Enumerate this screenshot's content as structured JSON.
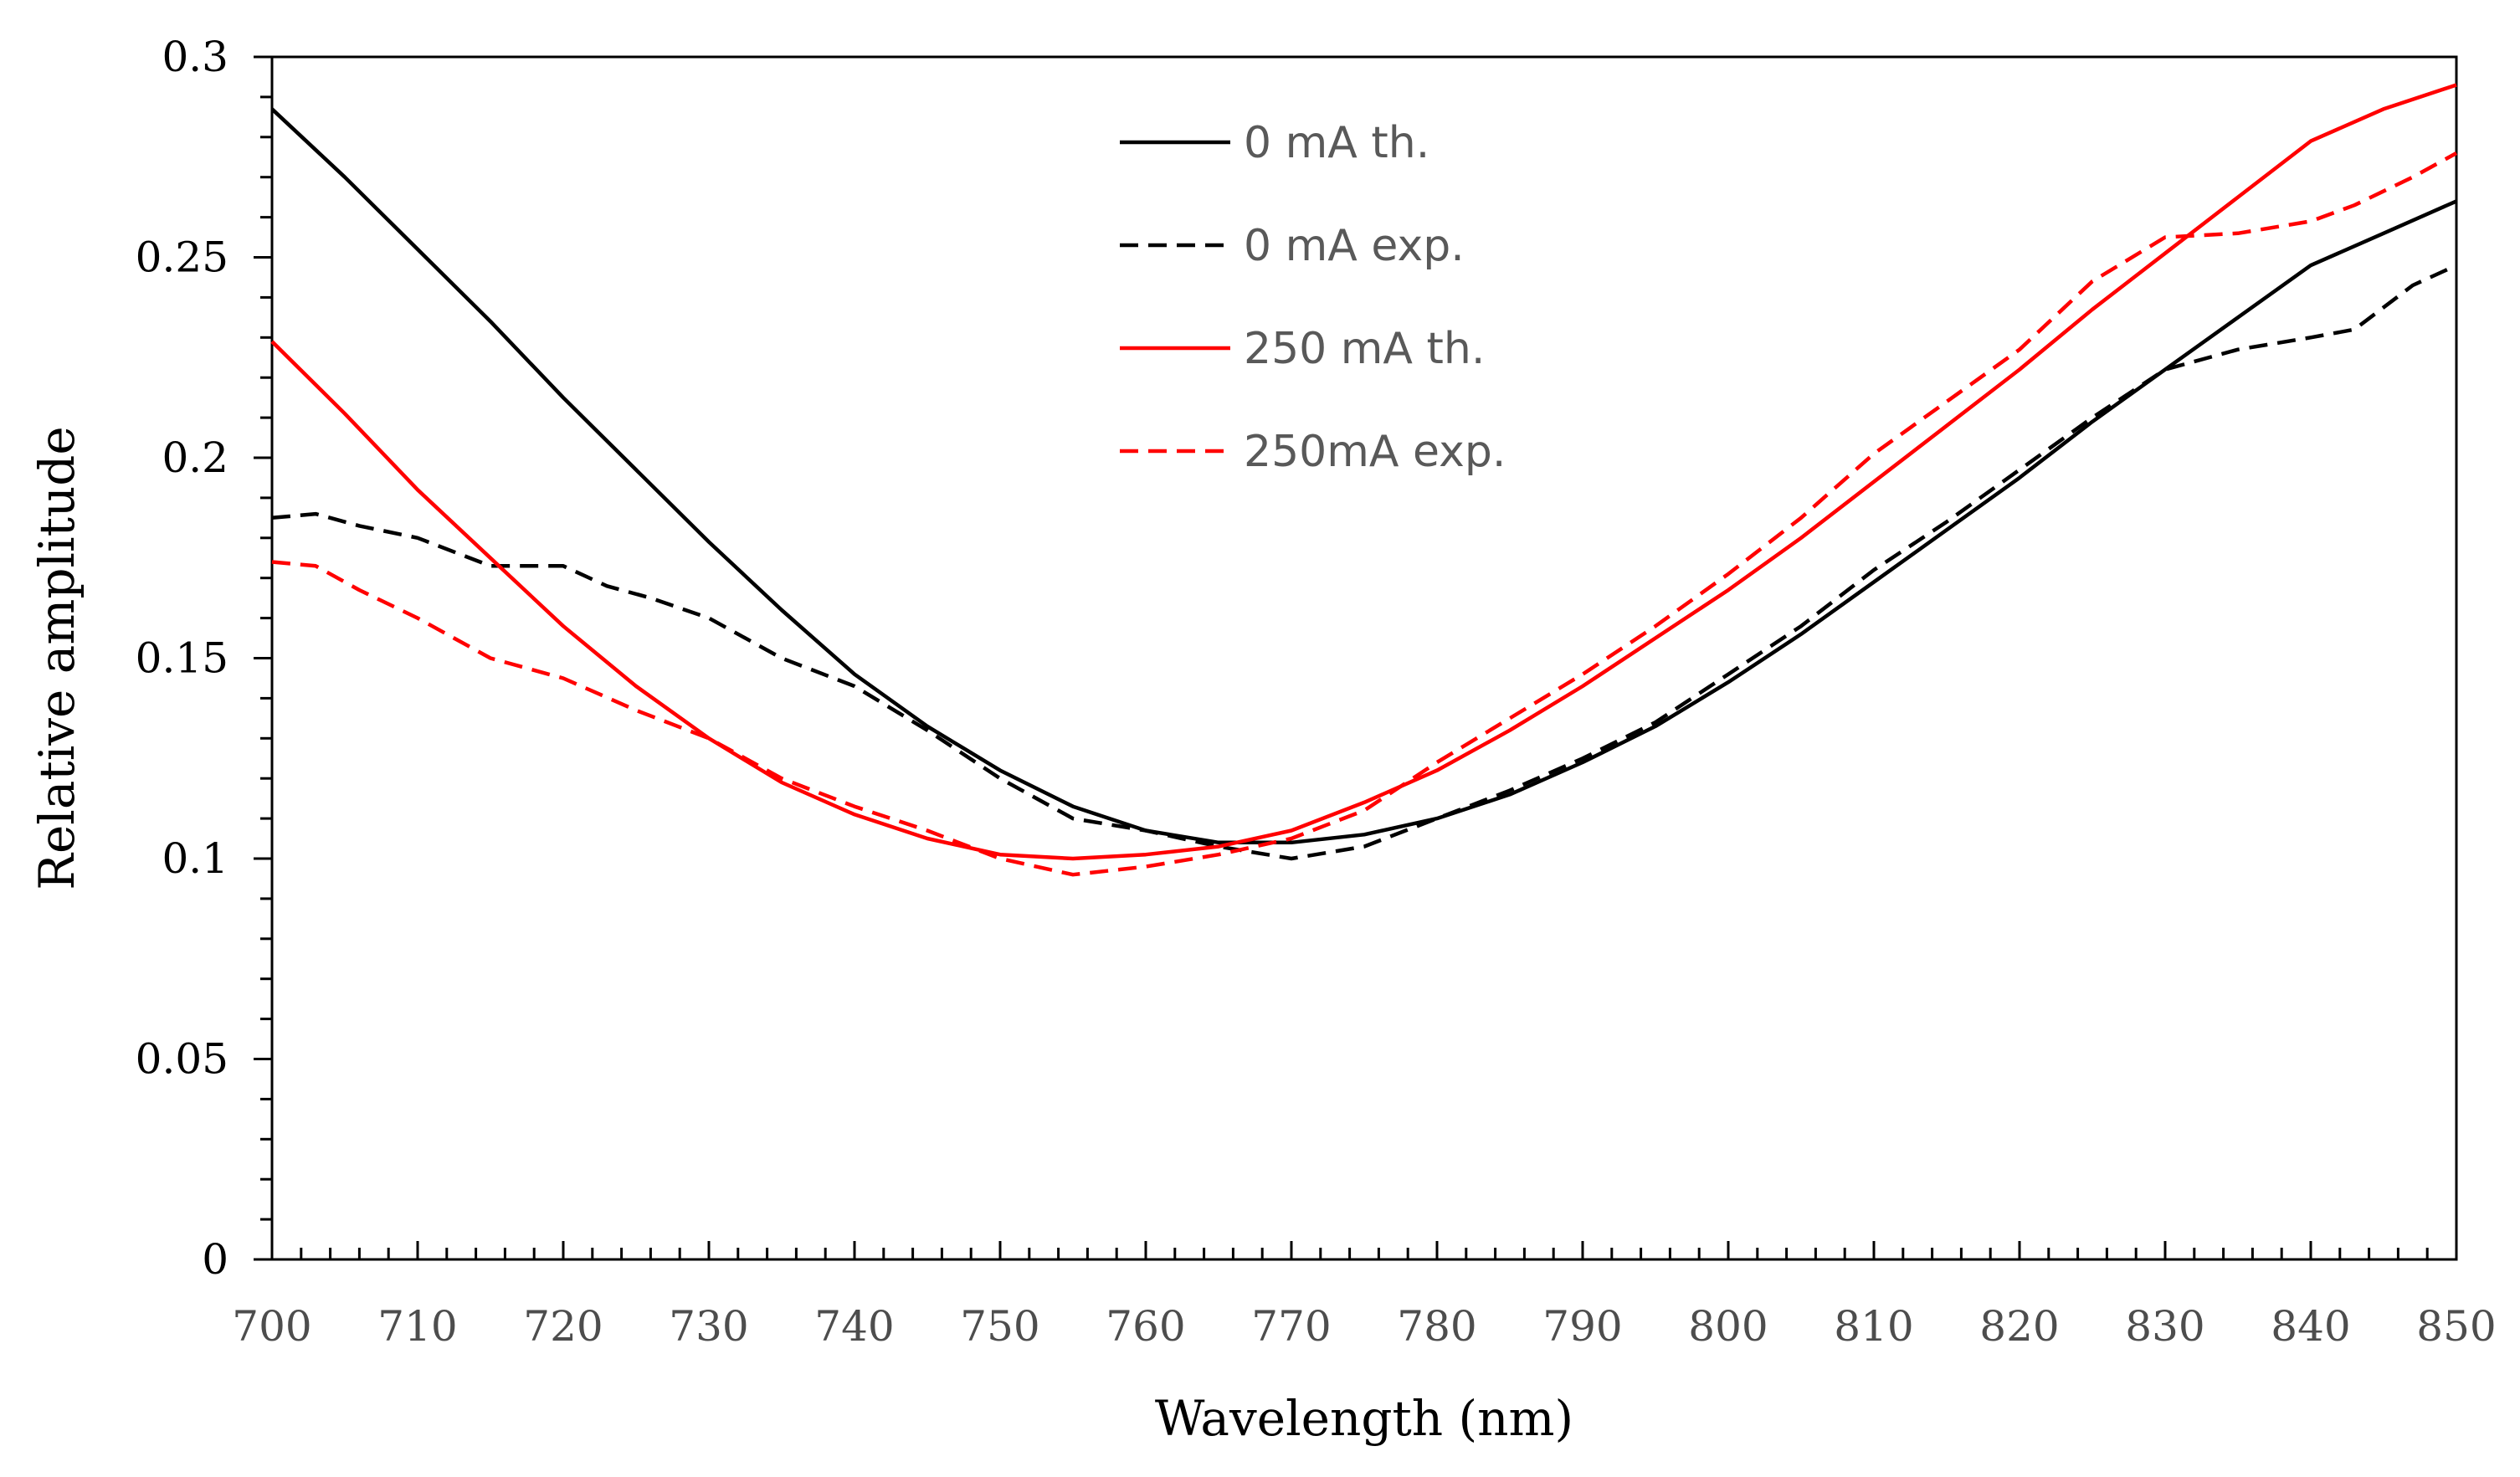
{
  "chart_data": {
    "type": "line",
    "xlabel": "Wavelength (nm)",
    "ylabel": "Relative amplitude",
    "xlim": [
      700,
      850
    ],
    "ylim": [
      0,
      0.3
    ],
    "x_ticks": [
      700,
      710,
      720,
      730,
      740,
      750,
      760,
      770,
      780,
      790,
      800,
      810,
      820,
      830,
      840,
      850
    ],
    "x_tick_labels": [
      "700",
      "710",
      "720",
      "730",
      "740",
      "750",
      "760",
      "770",
      "780",
      "790",
      "800",
      "810",
      "820",
      "830",
      "840",
      "850"
    ],
    "y_ticks": [
      0,
      0.05,
      0.1,
      0.15,
      0.2,
      0.25,
      0.3
    ],
    "y_tick_labels": [
      "0",
      "0.05",
      "0.1",
      "0.15",
      "0.2",
      "0.25",
      "0.3"
    ],
    "grid": false,
    "legend_position": "top-center",
    "series": [
      {
        "name": "0 mA th.",
        "color": "#000000",
        "dash": "solid",
        "x": [
          700,
          705,
          710,
          715,
          720,
          725,
          730,
          735,
          740,
          745,
          750,
          755,
          760,
          765,
          770,
          775,
          780,
          785,
          790,
          795,
          800,
          805,
          810,
          815,
          820,
          825,
          830,
          835,
          840,
          845,
          850
        ],
        "y": [
          0.287,
          0.27,
          0.252,
          0.234,
          0.215,
          0.197,
          0.179,
          0.162,
          0.146,
          0.133,
          0.122,
          0.113,
          0.107,
          0.104,
          0.104,
          0.106,
          0.11,
          0.116,
          0.124,
          0.133,
          0.144,
          0.156,
          0.169,
          0.182,
          0.195,
          0.209,
          0.222,
          0.235,
          0.248,
          0.256,
          0.264
        ]
      },
      {
        "name": "0 mA exp.",
        "color": "#000000",
        "dash": "dashed",
        "x": [
          700,
          703,
          706,
          710,
          715,
          720,
          723,
          726,
          730,
          735,
          740,
          745,
          750,
          755,
          760,
          765,
          770,
          775,
          780,
          785,
          790,
          795,
          800,
          805,
          810,
          815,
          820,
          825,
          830,
          835,
          840,
          843,
          847,
          850
        ],
        "y": [
          0.185,
          0.186,
          0.183,
          0.18,
          0.173,
          0.173,
          0.168,
          0.165,
          0.16,
          0.15,
          0.143,
          0.132,
          0.12,
          0.11,
          0.107,
          0.103,
          0.1,
          0.103,
          0.11,
          0.117,
          0.125,
          0.134,
          0.146,
          0.158,
          0.172,
          0.184,
          0.197,
          0.21,
          0.222,
          0.227,
          0.23,
          0.232,
          0.243,
          0.248
        ]
      },
      {
        "name": "250 mA th.",
        "color": "#ff0000",
        "dash": "solid",
        "x": [
          700,
          705,
          710,
          715,
          720,
          725,
          730,
          735,
          740,
          745,
          750,
          755,
          760,
          765,
          770,
          775,
          780,
          785,
          790,
          795,
          800,
          805,
          810,
          815,
          820,
          825,
          830,
          835,
          840,
          845,
          850
        ],
        "y": [
          0.229,
          0.211,
          0.192,
          0.175,
          0.158,
          0.143,
          0.13,
          0.119,
          0.111,
          0.105,
          0.101,
          0.1,
          0.101,
          0.103,
          0.107,
          0.114,
          0.122,
          0.132,
          0.143,
          0.155,
          0.167,
          0.18,
          0.194,
          0.208,
          0.222,
          0.237,
          0.251,
          0.265,
          0.279,
          0.287,
          0.293
        ]
      },
      {
        "name": "250mA exp.",
        "color": "#ff0000",
        "dash": "dashed",
        "x": [
          700,
          703,
          706,
          710,
          715,
          720,
          725,
          730,
          735,
          740,
          745,
          750,
          755,
          760,
          765,
          770,
          775,
          780,
          785,
          790,
          795,
          800,
          805,
          810,
          815,
          820,
          825,
          830,
          835,
          840,
          843,
          847,
          850
        ],
        "y": [
          0.174,
          0.173,
          0.167,
          0.16,
          0.15,
          0.145,
          0.137,
          0.13,
          0.12,
          0.113,
          0.107,
          0.1,
          0.096,
          0.098,
          0.101,
          0.105,
          0.112,
          0.124,
          0.135,
          0.146,
          0.158,
          0.171,
          0.185,
          0.201,
          0.214,
          0.227,
          0.244,
          0.255,
          0.256,
          0.259,
          0.263,
          0.27,
          0.276
        ]
      }
    ]
  }
}
